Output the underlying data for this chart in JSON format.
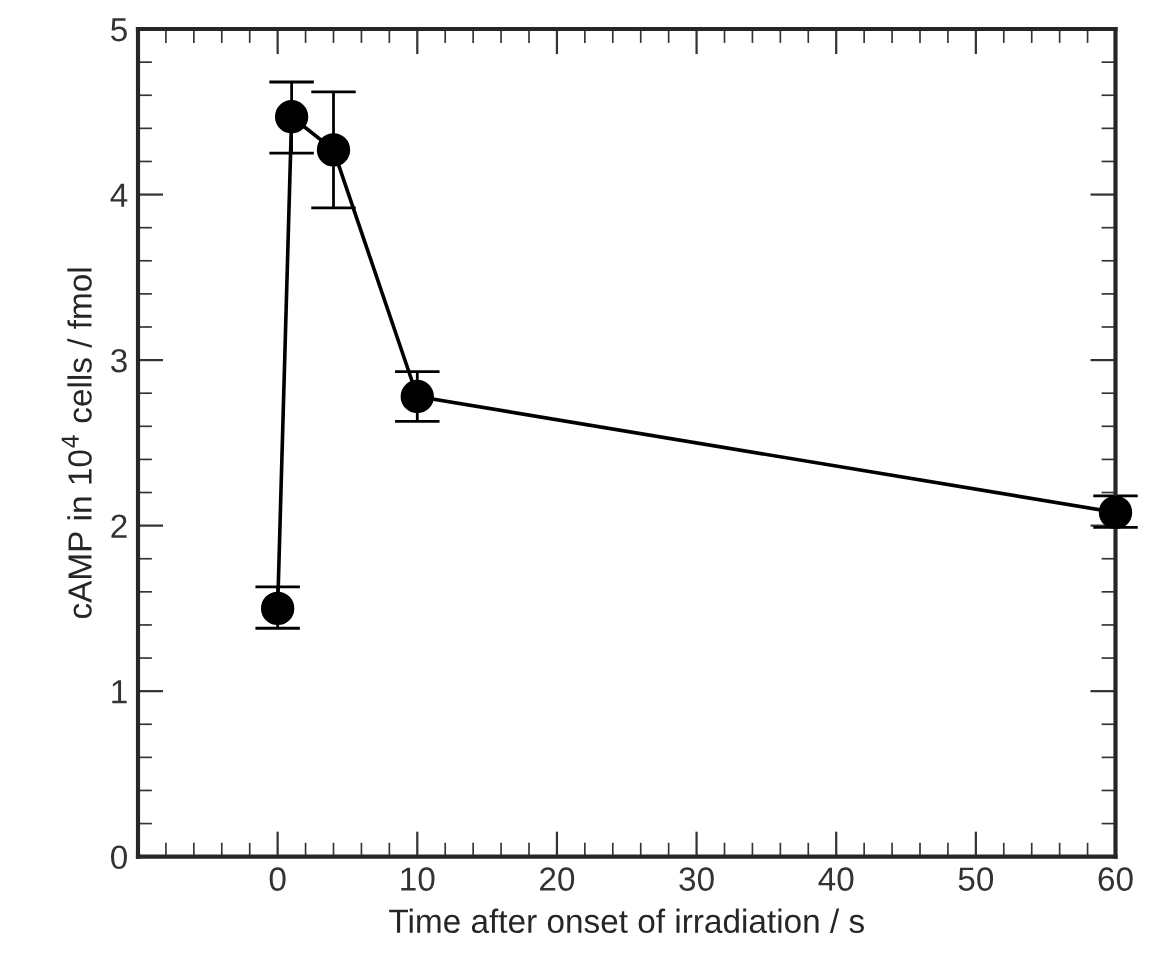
{
  "chart_data": {
    "type": "line",
    "xlabel": "Time after onset of irradiation / s",
    "ylabel": "cAMP in 10$^{4}$ cells / fmol",
    "x": [
      0,
      1,
      4,
      10,
      60
    ],
    "values": [
      1.5,
      4.47,
      4.27,
      2.78,
      2.08
    ],
    "errors": [
      [
        1.38,
        1.63
      ],
      [
        4.25,
        4.68
      ],
      [
        3.92,
        4.62
      ],
      [
        2.63,
        2.93
      ],
      [
        1.99,
        2.18
      ]
    ],
    "color": "#000000",
    "marker": "circle",
    "line_style": "solid",
    "xlim": [
      -10,
      60
    ],
    "xticks": [
      0,
      10,
      20,
      30,
      40,
      50,
      60
    ],
    "ylim": [
      0,
      5
    ],
    "yticks": [
      0,
      1,
      2,
      3,
      4,
      5
    ],
    "grid": false
  }
}
